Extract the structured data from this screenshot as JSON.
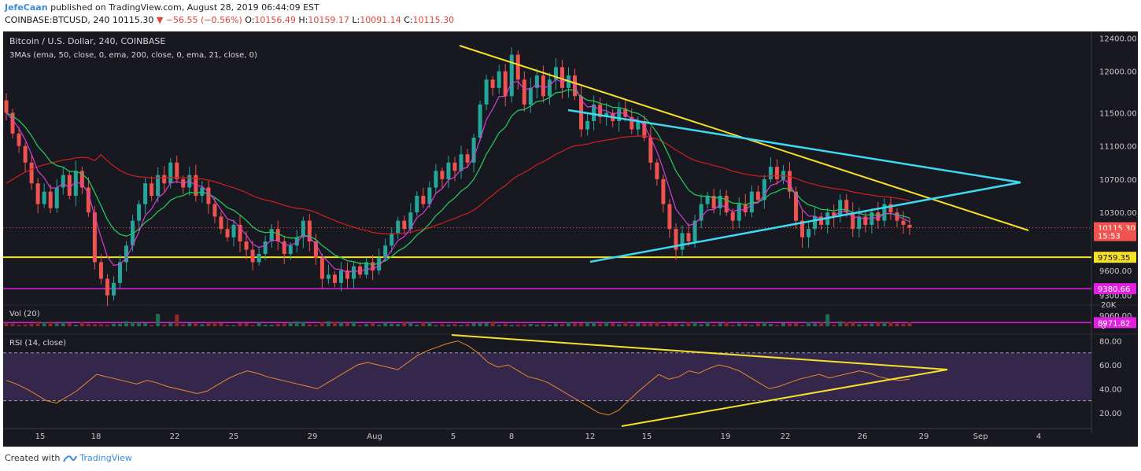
{
  "header": {
    "author": "JefeCaan",
    "published_text": "published on TradingView.com, August 28, 2019 06:44:09 EST",
    "symbol_line_prefix": "COINBASE:BTCUSD, 240",
    "last_price": "10115.30",
    "change": "▼ −56.55 (−0.56%)",
    "ohlc": [
      {
        "k": "O:",
        "v": "10156.49"
      },
      {
        "k": "H:",
        "v": "10159.17"
      },
      {
        "k": "L:",
        "v": "10091.14"
      },
      {
        "k": "C:",
        "v": "10115.30"
      }
    ]
  },
  "footer": {
    "created_with": "Created with",
    "brand": "TradingView"
  },
  "colors": {
    "background": "#181820",
    "bull": "#26a69a",
    "bear": "#ef5350",
    "ema50": "#22c55e",
    "ema200": "#d11f1f",
    "ema21": "#d43fd4",
    "trendline_yellow": "#f5e12a",
    "trendline_cyan": "#3fd8f2",
    "support_yellow": "#f5e12a",
    "support_magenta": "#e020e0",
    "rsi_line": "#e88a2a",
    "rsi_fill": "#3b2a55"
  },
  "chart_data": [
    {
      "type": "candlestick",
      "title": "Bitcoin / U.S. Dollar, 240, COINBASE",
      "indicator_label": "3MAs (ema, 50, close, 0, ema, 200, close, 0, ema, 21, close, 0)",
      "x_ticks": [
        "15",
        "18",
        "22",
        "25",
        "29",
        "Aug",
        "5",
        "8",
        "12",
        "15",
        "19",
        "22",
        "26",
        "29",
        "Sep",
        "4"
      ],
      "y_ticks": [
        "12400.00",
        "12000.00",
        "11500.00",
        "11100.00",
        "10700.00",
        "10300.00",
        "10115.30",
        "9759.35",
        "9600.00",
        "9380.66",
        "9300.00",
        "9060.00",
        "8971.82"
      ],
      "ylim": [
        8880,
        12480
      ],
      "price_badges": [
        {
          "label": "10115.30",
          "value": 10115.3,
          "color": "#ef5350"
        },
        {
          "label": "15:53",
          "value": 10020,
          "color": "#ef5350"
        },
        {
          "label": "9759.35",
          "value": 9759.35,
          "color": "#f5e12a"
        },
        {
          "label": "9380.66",
          "value": 9380.66,
          "color": "#e020e0"
        },
        {
          "label": "8971.82",
          "value": 8971.82,
          "color": "#e020e0"
        }
      ],
      "horizontal_levels": [
        {
          "value": 9759.35,
          "color": "#f5e12a"
        },
        {
          "value": 9380.66,
          "color": "#e020e0"
        },
        {
          "value": 8971.82,
          "color": "#e020e0"
        }
      ],
      "candles_approx": [
        [
          11650,
          11500
        ],
        [
          11500,
          11250
        ],
        [
          11250,
          11100
        ],
        [
          11100,
          10900
        ],
        [
          10900,
          10650
        ],
        [
          10650,
          10400
        ],
        [
          10400,
          10550
        ],
        [
          10550,
          10350
        ],
        [
          10350,
          10600
        ],
        [
          10600,
          10750
        ],
        [
          10750,
          10500
        ],
        [
          10500,
          10800
        ],
        [
          10800,
          10600
        ],
        [
          10600,
          10300
        ],
        [
          10300,
          9700
        ],
        [
          9700,
          9500
        ],
        [
          9500,
          9300
        ],
        [
          9300,
          9450
        ],
        [
          9450,
          9700
        ],
        [
          9700,
          9900
        ],
        [
          9900,
          10200
        ],
        [
          10200,
          10400
        ],
        [
          10400,
          10650
        ],
        [
          10650,
          10500
        ],
        [
          10500,
          10750
        ],
        [
          10750,
          10650
        ],
        [
          10650,
          10900
        ],
        [
          10900,
          10700
        ],
        [
          10700,
          10600
        ],
        [
          10600,
          10750
        ],
        [
          10750,
          10500
        ],
        [
          10500,
          10600
        ],
        [
          10600,
          10400
        ],
        [
          10400,
          10250
        ],
        [
          10250,
          10100
        ],
        [
          10100,
          10000
        ],
        [
          10000,
          10150
        ],
        [
          10150,
          9950
        ],
        [
          9950,
          9850
        ],
        [
          9850,
          9700
        ],
        [
          9700,
          9800
        ],
        [
          9800,
          9950
        ],
        [
          9950,
          10100
        ],
        [
          10100,
          9950
        ],
        [
          9950,
          9800
        ],
        [
          9800,
          9900
        ],
        [
          9900,
          10000
        ],
        [
          10000,
          10200
        ],
        [
          10200,
          9950
        ],
        [
          9950,
          9750
        ],
        [
          9750,
          9500
        ],
        [
          9500,
          9550
        ],
        [
          9550,
          9450
        ],
        [
          9450,
          9600
        ],
        [
          9600,
          9500
        ],
        [
          9500,
          9650
        ],
        [
          9650,
          9550
        ],
        [
          9550,
          9700
        ],
        [
          9700,
          9600
        ],
        [
          9600,
          9750
        ],
        [
          9750,
          9900
        ],
        [
          9900,
          10050
        ],
        [
          10050,
          10200
        ],
        [
          10200,
          10100
        ],
        [
          10100,
          10300
        ],
        [
          10300,
          10500
        ],
        [
          10500,
          10400
        ],
        [
          10400,
          10600
        ],
        [
          10600,
          10800
        ],
        [
          10800,
          10700
        ],
        [
          10700,
          10900
        ],
        [
          10900,
          10800
        ],
        [
          10800,
          11000
        ],
        [
          11000,
          10900
        ],
        [
          10900,
          11200
        ],
        [
          11200,
          11600
        ],
        [
          11600,
          11900
        ],
        [
          11900,
          11800
        ],
        [
          11800,
          12000
        ],
        [
          12000,
          11700
        ],
        [
          11700,
          12200
        ],
        [
          12200,
          11900
        ],
        [
          11900,
          11600
        ],
        [
          11600,
          11800
        ],
        [
          11800,
          11950
        ],
        [
          11950,
          11700
        ],
        [
          11700,
          11900
        ],
        [
          11900,
          12050
        ],
        [
          12050,
          11800
        ],
        [
          11800,
          11950
        ],
        [
          11950,
          11700
        ],
        [
          11700,
          11300
        ],
        [
          11300,
          11400
        ],
        [
          11400,
          11600
        ],
        [
          11600,
          11450
        ],
        [
          11450,
          11500
        ],
        [
          11500,
          11400
        ],
        [
          11400,
          11550
        ],
        [
          11550,
          11450
        ],
        [
          11450,
          11300
        ],
        [
          11300,
          11400
        ],
        [
          11400,
          11200
        ],
        [
          11200,
          10900
        ],
        [
          10900,
          10700
        ],
        [
          10700,
          10400
        ],
        [
          10400,
          10100
        ],
        [
          10100,
          9850
        ],
        [
          9850,
          10050
        ],
        [
          10050,
          9950
        ],
        [
          9950,
          10200
        ],
        [
          10200,
          10400
        ],
        [
          10400,
          10500
        ],
        [
          10500,
          10350
        ],
        [
          10350,
          10500
        ],
        [
          10500,
          10300
        ],
        [
          10300,
          10200
        ],
        [
          10200,
          10400
        ],
        [
          10400,
          10300
        ],
        [
          10300,
          10550
        ],
        [
          10550,
          10450
        ],
        [
          10450,
          10700
        ],
        [
          10700,
          10850
        ],
        [
          10850,
          10700
        ],
        [
          10700,
          10800
        ],
        [
          10800,
          10550
        ],
        [
          10550,
          10200
        ],
        [
          10200,
          10000
        ],
        [
          10000,
          10100
        ],
        [
          10100,
          10250
        ],
        [
          10250,
          10150
        ],
        [
          10150,
          10300
        ],
        [
          10300,
          10250
        ],
        [
          10250,
          10450
        ],
        [
          10450,
          10300
        ],
        [
          10300,
          10100
        ],
        [
          10100,
          10250
        ],
        [
          10250,
          10150
        ],
        [
          10150,
          10300
        ],
        [
          10300,
          10200
        ],
        [
          10200,
          10400
        ],
        [
          10400,
          10300
        ],
        [
          10300,
          10200
        ],
        [
          10200,
          10150
        ],
        [
          10150,
          10115.3
        ]
      ]
    },
    {
      "type": "bar",
      "title": "Vol (20)",
      "y_ticks": [
        "20K",
        "0"
      ]
    },
    {
      "type": "line",
      "title": "RSI (14, close)",
      "y_ticks": [
        "80.00",
        "60.00",
        "40.00",
        "20.00"
      ],
      "ylim": [
        10,
        85
      ],
      "bands": [
        70,
        30
      ],
      "series_approx": [
        47,
        44,
        40,
        35,
        30,
        28,
        33,
        38,
        45,
        52,
        50,
        48,
        46,
        44,
        47,
        45,
        42,
        40,
        38,
        36,
        38,
        43,
        48,
        52,
        55,
        53,
        50,
        48,
        46,
        44,
        42,
        40,
        45,
        50,
        55,
        60,
        62,
        60,
        58,
        56,
        62,
        68,
        72,
        75,
        78,
        80,
        76,
        70,
        62,
        58,
        60,
        55,
        50,
        48,
        45,
        40,
        35,
        30,
        25,
        20,
        18,
        22,
        30,
        38,
        45,
        52,
        48,
        50,
        55,
        53,
        57,
        60,
        58,
        55,
        50,
        45,
        40,
        42,
        45,
        48,
        50,
        52,
        49,
        51,
        53,
        55,
        53,
        50,
        48,
        47,
        48
      ]
    }
  ]
}
